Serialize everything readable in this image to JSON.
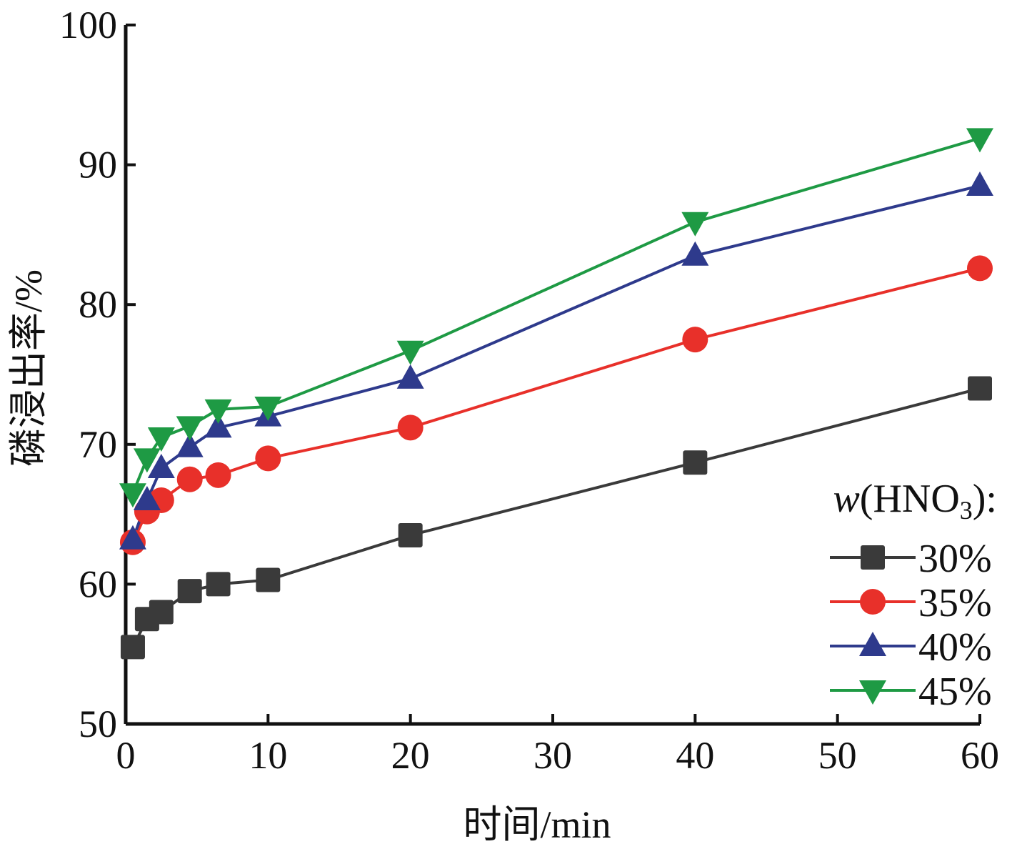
{
  "chart_data": {
    "type": "line",
    "xlabel": "时间/min",
    "ylabel": "磷浸出率/%",
    "xlim": [
      0,
      60
    ],
    "ylim": [
      50,
      100
    ],
    "xticks": [
      0,
      10,
      20,
      30,
      40,
      50,
      60
    ],
    "yticks": [
      50,
      60,
      70,
      80,
      90,
      100
    ],
    "grid": false,
    "legend": {
      "title_prefix": "w",
      "title_body": "(HNO",
      "title_sub": "3",
      "title_suffix": "):",
      "placement": "right"
    },
    "series": [
      {
        "name": "30%",
        "color": "#3a3a3a",
        "marker": "square",
        "x": [
          0.5,
          1.5,
          2.5,
          4.5,
          6.5,
          10,
          20,
          40,
          60
        ],
        "y": [
          55.5,
          57.5,
          58.0,
          59.5,
          60.0,
          60.3,
          63.5,
          68.7,
          74.0
        ]
      },
      {
        "name": "35%",
        "color": "#e8302a",
        "marker": "circle",
        "x": [
          0.5,
          1.5,
          2.5,
          4.5,
          6.5,
          10,
          20,
          40,
          60
        ],
        "y": [
          63.0,
          65.2,
          66.0,
          67.5,
          67.8,
          69.0,
          71.2,
          77.5,
          82.6
        ]
      },
      {
        "name": "40%",
        "color": "#2e3a8c",
        "marker": "triangle-up",
        "x": [
          0.5,
          1.5,
          2.5,
          4.5,
          6.5,
          10,
          20,
          40,
          60
        ],
        "y": [
          63.2,
          66.0,
          68.3,
          69.8,
          71.2,
          72.0,
          74.7,
          83.5,
          88.5
        ]
      },
      {
        "name": "45%",
        "color": "#1e9a44",
        "marker": "triangle-down",
        "x": [
          0.5,
          1.5,
          2.5,
          4.5,
          6.5,
          10,
          20,
          40,
          60
        ],
        "y": [
          66.5,
          69.0,
          70.5,
          71.3,
          72.5,
          72.7,
          76.7,
          85.9,
          91.9
        ]
      }
    ]
  }
}
